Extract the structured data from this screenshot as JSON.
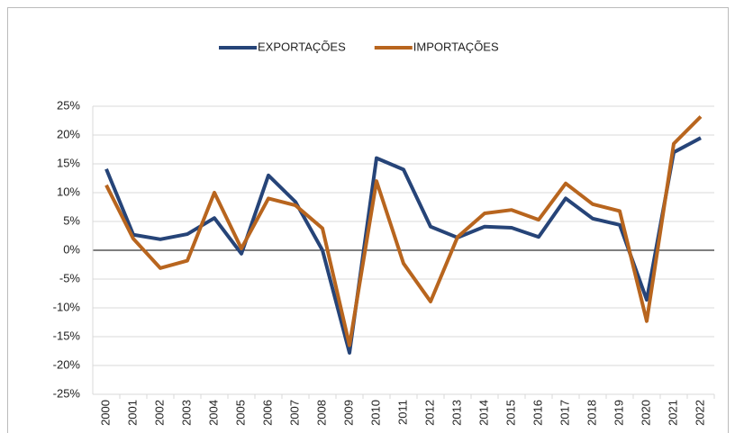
{
  "chart_data": {
    "type": "line",
    "categories": [
      "2000",
      "2001",
      "2002",
      "2003",
      "2004",
      "2005",
      "2006",
      "2007",
      "2008",
      "2009",
      "2010",
      "2011",
      "2012",
      "2013",
      "2014",
      "2015",
      "2016",
      "2017",
      "2018",
      "2019",
      "2020",
      "2021",
      "2022"
    ],
    "series": [
      {
        "name": "EXPORTAÇÕES",
        "color": "#264478",
        "values": [
          14.1,
          2.7,
          1.9,
          2.8,
          5.6,
          -0.6,
          13,
          8.4,
          0,
          -17.8,
          16,
          14,
          4.1,
          2.2,
          4.1,
          3.9,
          2.3,
          9,
          5.5,
          4.4,
          -8.6,
          17,
          19.5
        ]
      },
      {
        "name": "IMPORTAÇÕES",
        "color": "#b8651e",
        "values": [
          11.3,
          2,
          -3.1,
          -1.8,
          10,
          0.3,
          9,
          7.8,
          3.8,
          -16.5,
          12,
          -2.3,
          -8.9,
          2.3,
          6.4,
          7,
          5.3,
          11.6,
          8,
          6.8,
          -12.3,
          18.5,
          23.2
        ]
      }
    ],
    "ylim": [
      -25,
      25
    ],
    "yticks": [
      {
        "value": -25,
        "label": "-25%"
      },
      {
        "value": -20,
        "label": "-20%"
      },
      {
        "value": -15,
        "label": "-15%"
      },
      {
        "value": -10,
        "label": "-10%"
      },
      {
        "value": -5,
        "label": "-5%"
      },
      {
        "value": 0,
        "label": "0%"
      },
      {
        "value": 5,
        "label": "5%"
      },
      {
        "value": 10,
        "label": "10%"
      },
      {
        "value": 15,
        "label": "15%"
      },
      {
        "value": 20,
        "label": "20%"
      },
      {
        "value": 25,
        "label": "25%"
      }
    ],
    "grid": true,
    "legend": "top"
  }
}
